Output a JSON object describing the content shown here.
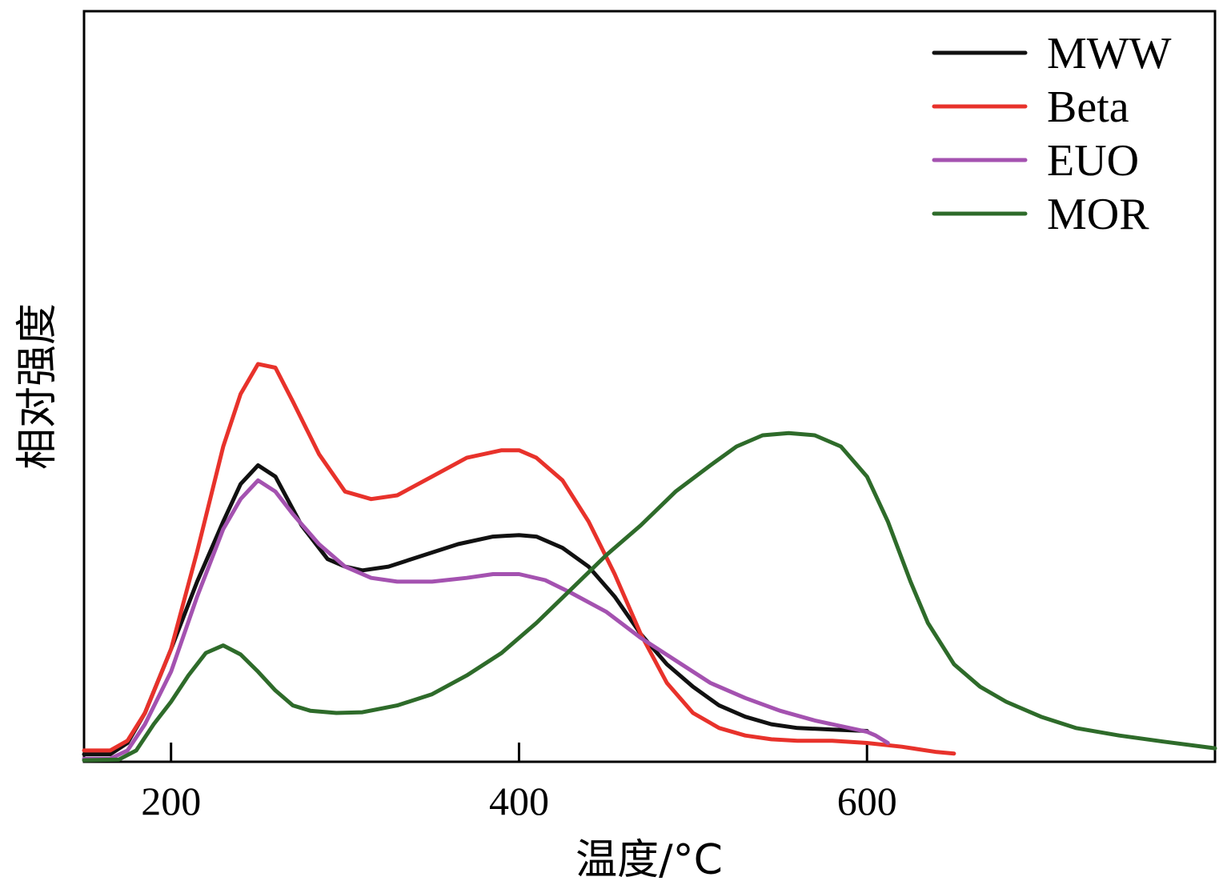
{
  "chart_data": {
    "type": "line",
    "title": "",
    "xlabel": "温度/°C",
    "ylabel": "相对强度",
    "xlim": [
      150,
      800
    ],
    "ylim": [
      0,
      100
    ],
    "xticks": [
      200,
      400,
      600
    ],
    "xtick_labels": [
      "200",
      "400",
      "600"
    ],
    "yticks": [],
    "grid": false,
    "legend_position": "top-right",
    "series": [
      {
        "name": "MWW",
        "color": "#111111",
        "points": [
          [
            150,
            1.0
          ],
          [
            165,
            1.0
          ],
          [
            175,
            2.5
          ],
          [
            185,
            6.5
          ],
          [
            200,
            15
          ],
          [
            215,
            24
          ],
          [
            230,
            32
          ],
          [
            240,
            37
          ],
          [
            250,
            39.5
          ],
          [
            260,
            38
          ],
          [
            275,
            31.5
          ],
          [
            290,
            27
          ],
          [
            300,
            26
          ],
          [
            310,
            25.5
          ],
          [
            325,
            26
          ],
          [
            345,
            27.5
          ],
          [
            365,
            29
          ],
          [
            385,
            30
          ],
          [
            400,
            30.2
          ],
          [
            410,
            30
          ],
          [
            425,
            28.5
          ],
          [
            440,
            26
          ],
          [
            455,
            22
          ],
          [
            470,
            17
          ],
          [
            485,
            13
          ],
          [
            500,
            10
          ],
          [
            515,
            7.5
          ],
          [
            530,
            6
          ],
          [
            545,
            5
          ],
          [
            560,
            4.5
          ],
          [
            580,
            4.3
          ],
          [
            600,
            4.1
          ]
        ]
      },
      {
        "name": "Beta",
        "color": "#e8322b",
        "points": [
          [
            150,
            1.5
          ],
          [
            165,
            1.5
          ],
          [
            175,
            2.8
          ],
          [
            185,
            6.5
          ],
          [
            200,
            15
          ],
          [
            215,
            28
          ],
          [
            230,
            42
          ],
          [
            240,
            49
          ],
          [
            250,
            53
          ],
          [
            260,
            52.5
          ],
          [
            270,
            48
          ],
          [
            285,
            41
          ],
          [
            300,
            36
          ],
          [
            315,
            35
          ],
          [
            330,
            35.5
          ],
          [
            350,
            38
          ],
          [
            370,
            40.5
          ],
          [
            390,
            41.5
          ],
          [
            400,
            41.5
          ],
          [
            410,
            40.5
          ],
          [
            425,
            37.5
          ],
          [
            440,
            32
          ],
          [
            455,
            25
          ],
          [
            470,
            17
          ],
          [
            485,
            10.5
          ],
          [
            500,
            6.5
          ],
          [
            515,
            4.5
          ],
          [
            530,
            3.5
          ],
          [
            545,
            3
          ],
          [
            560,
            2.8
          ],
          [
            580,
            2.8
          ],
          [
            600,
            2.5
          ],
          [
            620,
            2
          ],
          [
            640,
            1.3
          ],
          [
            650,
            1.1
          ]
        ]
      },
      {
        "name": "EUO",
        "color": "#a452b0",
        "points": [
          [
            150,
            0.4
          ],
          [
            165,
            0.4
          ],
          [
            175,
            1.5
          ],
          [
            185,
            5
          ],
          [
            200,
            12
          ],
          [
            215,
            22
          ],
          [
            230,
            31
          ],
          [
            240,
            35
          ],
          [
            250,
            37.5
          ],
          [
            260,
            36
          ],
          [
            270,
            33
          ],
          [
            285,
            29
          ],
          [
            300,
            26
          ],
          [
            315,
            24.5
          ],
          [
            330,
            24
          ],
          [
            350,
            24
          ],
          [
            370,
            24.5
          ],
          [
            385,
            25
          ],
          [
            400,
            25
          ],
          [
            415,
            24.2
          ],
          [
            430,
            22.5
          ],
          [
            450,
            20
          ],
          [
            470,
            16.5
          ],
          [
            490,
            13.5
          ],
          [
            510,
            10.5
          ],
          [
            530,
            8.5
          ],
          [
            550,
            6.8
          ],
          [
            570,
            5.5
          ],
          [
            590,
            4.5
          ],
          [
            600,
            4
          ],
          [
            605,
            3.5
          ],
          [
            612,
            2.5
          ]
        ]
      },
      {
        "name": "MOR",
        "color": "#2e6b2a",
        "points": [
          [
            150,
            0.2
          ],
          [
            170,
            0.3
          ],
          [
            180,
            1.5
          ],
          [
            190,
            5
          ],
          [
            200,
            8
          ],
          [
            210,
            11.5
          ],
          [
            220,
            14.5
          ],
          [
            230,
            15.5
          ],
          [
            240,
            14.3
          ],
          [
            250,
            12
          ],
          [
            260,
            9.5
          ],
          [
            270,
            7.5
          ],
          [
            280,
            6.8
          ],
          [
            295,
            6.5
          ],
          [
            310,
            6.6
          ],
          [
            330,
            7.5
          ],
          [
            350,
            9
          ],
          [
            370,
            11.5
          ],
          [
            390,
            14.5
          ],
          [
            410,
            18.5
          ],
          [
            430,
            23
          ],
          [
            450,
            27.5
          ],
          [
            470,
            31.5
          ],
          [
            490,
            36
          ],
          [
            510,
            39.5
          ],
          [
            525,
            42
          ],
          [
            540,
            43.5
          ],
          [
            555,
            43.8
          ],
          [
            570,
            43.5
          ],
          [
            585,
            42
          ],
          [
            600,
            38
          ],
          [
            612,
            32
          ],
          [
            625,
            24
          ],
          [
            635,
            18.5
          ],
          [
            650,
            13
          ],
          [
            665,
            10
          ],
          [
            680,
            8
          ],
          [
            700,
            6
          ],
          [
            720,
            4.5
          ],
          [
            745,
            3.5
          ],
          [
            770,
            2.7
          ],
          [
            800,
            1.8
          ]
        ]
      }
    ]
  }
}
